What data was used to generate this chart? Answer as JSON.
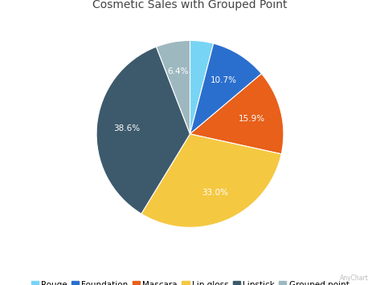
{
  "title": "Cosmetic Sales with Grouped Point",
  "labels": [
    "Rouge",
    "Foundation",
    "Mascara",
    "Lip gloss",
    "Lipstick",
    "Grouped point"
  ],
  "values": [
    4.4,
    10.7,
    15.9,
    33.0,
    38.6,
    6.4
  ],
  "colors": [
    "#78d4f5",
    "#2b6fce",
    "#e8601a",
    "#f5c842",
    "#3d5a6c",
    "#9eb8bf"
  ],
  "pct_labels": [
    "",
    "10.7%",
    "15.9%",
    "33.0%",
    "38.6%",
    "6.4%"
  ],
  "startangle": 90,
  "background_color": "#ffffff",
  "title_fontsize": 10,
  "legend_fontsize": 7.5
}
